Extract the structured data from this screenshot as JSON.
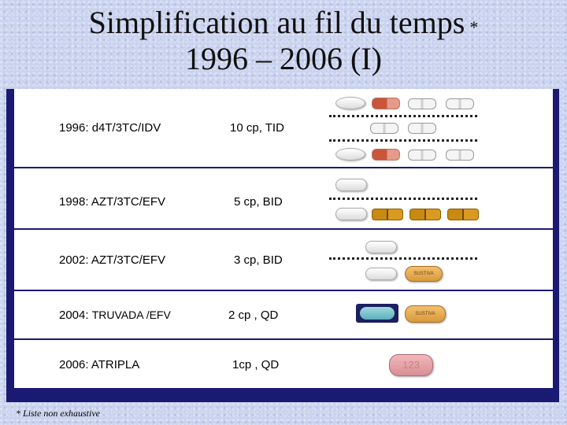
{
  "title": {
    "line1": "Simplification au fil du temps",
    "star": "*",
    "line2": "1996 – 2006 (I)"
  },
  "rows": [
    {
      "label": "1996: d4T/3TC/IDV",
      "dose": "10 cp, TID"
    },
    {
      "label": "1998: AZT/3TC/EFV",
      "dose": "5 cp, BID"
    },
    {
      "label": "2002: AZT/3TC/EFV",
      "dose": "3 cp, BID"
    },
    {
      "label_prefix": "2004: ",
      "label_rest": "TRUVADA /EFV",
      "dose": "2 cp , QD"
    },
    {
      "label": "2006: ATRIPLA",
      "dose": "1cp , QD"
    }
  ],
  "pill_text": {
    "sustiva": "SUSTIVA",
    "atripla": "123"
  },
  "footnote": "* Liste non exhaustive"
}
